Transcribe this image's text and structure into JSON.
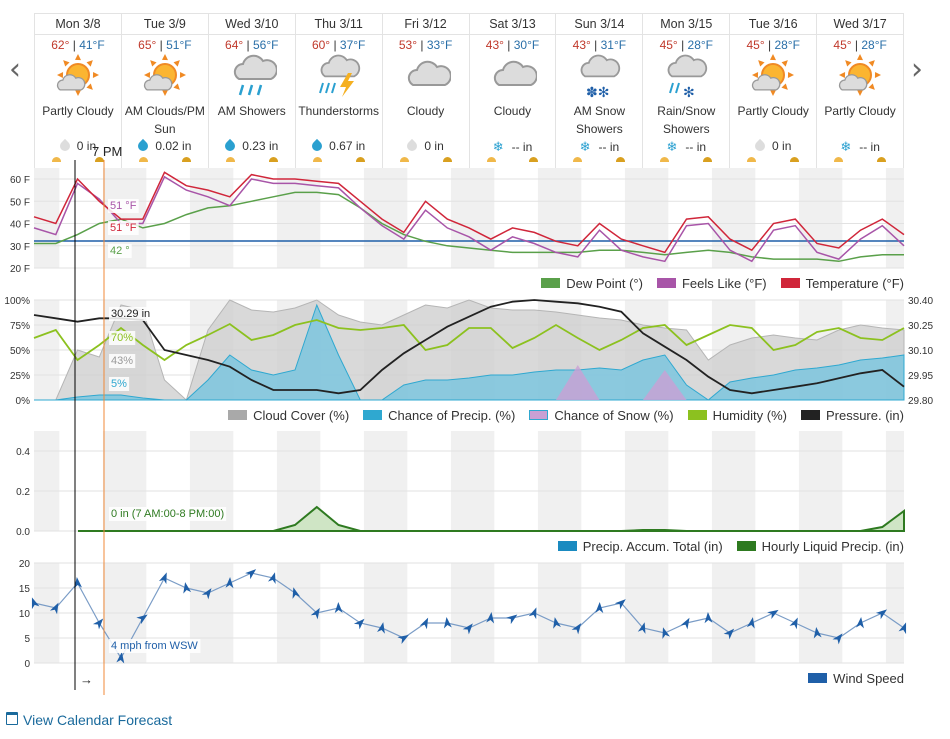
{
  "nav": {
    "prev": "‹",
    "next": "›"
  },
  "days": [
    {
      "name": "Mon 3/8",
      "hi": "62°",
      "lo": "41°F",
      "icon": "partly-cloudy-icon",
      "cond": "Partly Cloudy",
      "precip": "0 in",
      "drop": "none"
    },
    {
      "name": "Tue 3/9",
      "hi": "65°",
      "lo": "51°F",
      "icon": "partly-cloudy-icon",
      "cond": "AM Clouds/PM Sun",
      "precip": "0.02 in",
      "drop": "rain"
    },
    {
      "name": "Wed 3/10",
      "hi": "64°",
      "lo": "56°F",
      "icon": "showers-icon",
      "cond": "AM Showers",
      "precip": "0.23 in",
      "drop": "rain"
    },
    {
      "name": "Thu 3/11",
      "hi": "60°",
      "lo": "37°F",
      "icon": "thunderstorm-icon",
      "cond": "Thunderstorms",
      "precip": "0.67 in",
      "drop": "rain"
    },
    {
      "name": "Fri 3/12",
      "hi": "53°",
      "lo": "33°F",
      "icon": "cloudy-icon",
      "cond": "Cloudy",
      "precip": "0 in",
      "drop": "none"
    },
    {
      "name": "Sat 3/13",
      "hi": "43°",
      "lo": "30°F",
      "icon": "cloudy-icon",
      "cond": "Cloudy",
      "precip": "-- in",
      "drop": "snow"
    },
    {
      "name": "Sun 3/14",
      "hi": "43°",
      "lo": "31°F",
      "icon": "snow-showers-icon",
      "cond": "AM Snow Showers",
      "precip": "-- in",
      "drop": "snow"
    },
    {
      "name": "Mon 3/15",
      "hi": "45°",
      "lo": "28°F",
      "icon": "rain-snow-icon",
      "cond": "Rain/Snow Showers",
      "precip": "-- in",
      "drop": "snow"
    },
    {
      "name": "Tue 3/16",
      "hi": "45°",
      "lo": "28°F",
      "icon": "partly-cloudy-icon",
      "cond": "Partly Cloudy",
      "precip": "0 in",
      "drop": "none"
    },
    {
      "name": "Wed 3/17",
      "hi": "45°",
      "lo": "28°F",
      "icon": "partly-cloudy-icon",
      "cond": "Partly Cloudy",
      "precip": "-- in",
      "drop": "snow"
    }
  ],
  "cursor": {
    "time": "7 PM",
    "arrow": "→"
  },
  "colors": {
    "temperature": "#d0263a",
    "feels_like": "#a855a8",
    "dew_point": "#5aa04a",
    "cloud": "#a9a9a9",
    "precip_chance": "#2fa8d0",
    "snow": "#b07ac0",
    "humidity": "#8cc11f",
    "pressure": "#222222",
    "liquid": "#2e7a20",
    "accum": "#1a8ac0",
    "wind": "#1f5fa8",
    "freezing": "#1f5fa8"
  },
  "chart_data": [
    {
      "type": "line",
      "title": "",
      "y_ticks": [
        "60 F",
        "50 F",
        "40 F",
        "30 F",
        "20 F"
      ],
      "ylim": [
        20,
        65
      ],
      "legend": [
        "Dew Point (°)",
        "Feels Like (°F)",
        "Temperature (°F)"
      ],
      "labels": {
        "feels": "51 °F",
        "temp": "51 °F",
        "dew": "42 °"
      },
      "series": [
        {
          "name": "Temperature (°F)",
          "values": [
            43,
            40,
            60,
            50,
            42,
            42,
            63,
            57,
            55,
            52,
            62,
            60,
            60,
            59,
            58,
            50,
            42,
            36,
            50,
            42,
            38,
            33,
            38,
            36,
            32,
            30,
            40,
            33,
            30,
            27,
            42,
            43,
            33,
            28,
            40,
            42,
            31,
            29,
            37,
            42,
            35
          ]
        },
        {
          "name": "Feels Like (°F)",
          "values": [
            38,
            35,
            58,
            51,
            40,
            40,
            61,
            55,
            52,
            48,
            60,
            58,
            58,
            57,
            56,
            47,
            39,
            33,
            46,
            38,
            34,
            28,
            34,
            31,
            27,
            25,
            37,
            28,
            25,
            23,
            39,
            40,
            28,
            23,
            37,
            39,
            27,
            24,
            33,
            39,
            30
          ]
        },
        {
          "name": "Dew Point (°)",
          "values": [
            31,
            31,
            35,
            40,
            42,
            38,
            40,
            44,
            47,
            48,
            50,
            52,
            54,
            54,
            53,
            47,
            40,
            35,
            32,
            30,
            29,
            28,
            27,
            27,
            27,
            27,
            28,
            28,
            27,
            26,
            27,
            28,
            27,
            25,
            24,
            24,
            24,
            23,
            25,
            26,
            26
          ]
        }
      ]
    },
    {
      "type": "area",
      "title": "",
      "y_ticks": [
        "100%",
        "75%",
        "50%",
        "25%",
        "0%"
      ],
      "y2_ticks": [
        "30.40",
        "30.25",
        "30.10",
        "29.95",
        "29.80"
      ],
      "ylim": [
        0,
        100
      ],
      "y2lim": [
        29.8,
        30.4
      ],
      "legend": [
        "Cloud Cover (%)",
        "Chance of Precip. (%)",
        "Chance of Snow (%)",
        "Humidity (%)",
        "Pressure. (in)"
      ],
      "labels": {
        "pressure": "30.29 in",
        "humidity": "70%",
        "cloud": "43%",
        "precip": "5%"
      },
      "series": [
        {
          "name": "Cloud Cover (%)",
          "values": [
            0,
            0,
            50,
            43,
            95,
            90,
            20,
            0,
            70,
            100,
            90,
            88,
            92,
            100,
            85,
            78,
            75,
            85,
            95,
            92,
            100,
            92,
            90,
            90,
            88,
            85,
            82,
            80,
            75,
            72,
            70,
            40,
            55,
            62,
            65,
            62,
            60,
            70,
            75,
            72,
            70
          ]
        },
        {
          "name": "Chance of Precip. (%)",
          "values": [
            0,
            0,
            3,
            5,
            5,
            2,
            0,
            0,
            20,
            45,
            30,
            25,
            30,
            95,
            45,
            0,
            0,
            15,
            20,
            20,
            22,
            25,
            25,
            28,
            30,
            30,
            32,
            30,
            40,
            45,
            15,
            0,
            18,
            22,
            25,
            30,
            32,
            35,
            40,
            42,
            45
          ]
        },
        {
          "name": "Chance of Snow (%)",
          "values": [
            0,
            0,
            0,
            0,
            0,
            0,
            0,
            0,
            0,
            0,
            0,
            0,
            0,
            0,
            0,
            0,
            0,
            0,
            0,
            0,
            0,
            0,
            0,
            0,
            0,
            35,
            0,
            0,
            0,
            30,
            0,
            0,
            0,
            0,
            0,
            0,
            0,
            0,
            0,
            0,
            0
          ]
        },
        {
          "name": "Humidity (%)",
          "values": [
            62,
            70,
            40,
            55,
            72,
            55,
            40,
            55,
            65,
            76,
            60,
            65,
            75,
            80,
            72,
            70,
            72,
            75,
            50,
            55,
            72,
            72,
            52,
            62,
            75,
            62,
            50,
            60,
            72,
            75,
            55,
            65,
            75,
            72,
            50,
            55,
            68,
            72,
            62,
            60,
            72
          ]
        },
        {
          "name": "Pressure. (in)",
          "values": [
            30.31,
            30.29,
            30.27,
            30.29,
            30.29,
            30.28,
            30.1,
            30.07,
            30.04,
            30.0,
            29.92,
            29.86,
            29.86,
            29.86,
            29.84,
            29.86,
            29.98,
            30.08,
            30.16,
            30.24,
            30.3,
            30.36,
            30.39,
            30.4,
            30.39,
            30.38,
            30.36,
            30.33,
            30.2,
            30.12,
            30.04,
            29.94,
            29.86,
            29.84,
            29.86,
            29.88,
            29.9,
            29.93,
            29.96,
            29.98,
            29.88
          ]
        }
      ]
    },
    {
      "type": "area",
      "title": "",
      "y_ticks": [
        "0.4",
        "0.2",
        "0.0"
      ],
      "ylim": [
        0,
        0.5
      ],
      "legend": [
        "Precip. Accum. Total (in)",
        "Hourly Liquid Precip. (in)"
      ],
      "labels": {
        "liquid": "0 in (7 AM:00-8 PM:00)"
      },
      "series": [
        {
          "name": "Hourly Liquid Precip. (in)",
          "values": [
            0,
            0,
            0,
            0,
            0,
            0,
            0,
            0,
            0,
            0,
            0,
            0,
            0.03,
            0.12,
            0.03,
            0,
            0,
            0,
            0,
            0,
            0,
            0,
            0,
            0,
            0,
            0,
            0,
            0,
            0.005,
            0.005,
            0,
            0,
            0,
            0,
            0,
            0,
            0,
            0,
            0,
            0.02,
            0.1
          ]
        }
      ]
    },
    {
      "type": "line",
      "title": "",
      "y_ticks": [
        "20",
        "15",
        "10",
        "5",
        "0"
      ],
      "ylim": [
        0,
        20
      ],
      "legend": [
        "Wind Speed"
      ],
      "labels": {
        "wind": "4 mph from WSW"
      },
      "series": [
        {
          "name": "Wind Speed",
          "values": [
            12,
            11,
            16,
            8,
            1,
            9,
            17,
            15,
            14,
            16,
            18,
            17,
            14,
            10,
            11,
            8,
            7,
            5,
            8,
            8,
            7,
            9,
            9,
            10,
            8,
            7,
            11,
            12,
            7,
            6,
            8,
            9,
            6,
            8,
            10,
            8,
            6,
            5,
            8,
            10,
            7
          ]
        }
      ]
    }
  ],
  "footer": {
    "icon": "calendar-icon",
    "label": "View Calendar Forecast"
  }
}
